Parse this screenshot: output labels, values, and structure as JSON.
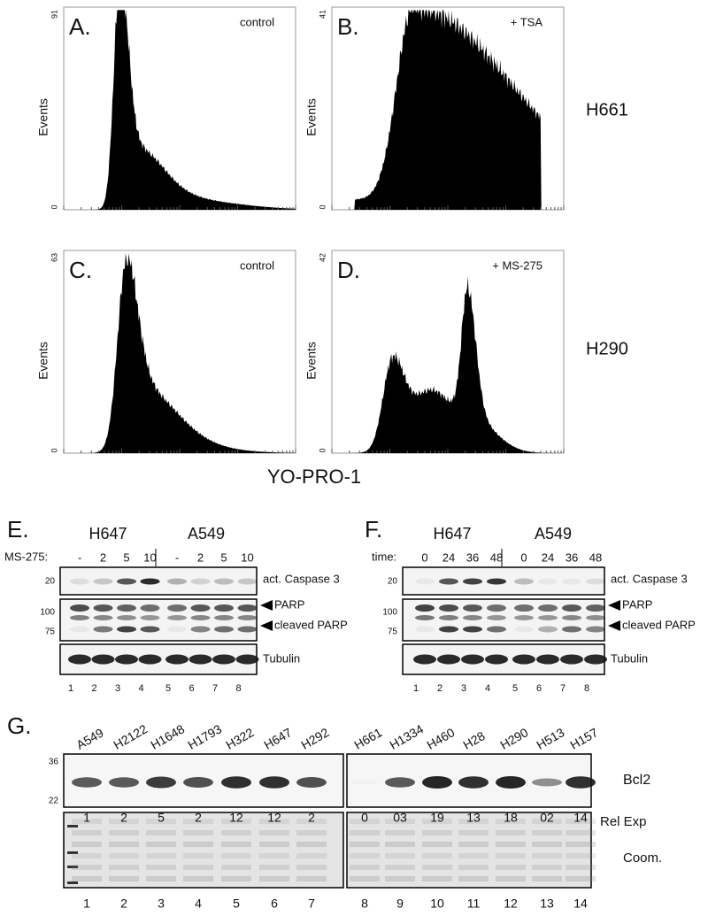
{
  "flow_panels": [
    {
      "letter": "A.",
      "treatment": "control",
      "y_axis_label": "Events",
      "y_max": "91",
      "y_min": "0"
    },
    {
      "letter": "B.",
      "treatment": "+ TSA",
      "y_axis_label": "Events",
      "y_max": "41",
      "y_min": "0"
    },
    {
      "letter": "C.",
      "treatment": "control",
      "y_axis_label": "Events",
      "y_max": "63",
      "y_min": "0"
    },
    {
      "letter": "D.",
      "treatment": "+ MS-275",
      "y_axis_label": "Events",
      "y_max": "42",
      "y_min": "0"
    }
  ],
  "cell_line_labels": [
    "H661",
    "H290"
  ],
  "x_axis_label": "YO-PRO-1",
  "blots": [
    {
      "letter": "E.",
      "groups": [
        "H647",
        "A549"
      ],
      "condition_label": "MS-275:",
      "conditions": [
        "-",
        "2",
        "5",
        "10",
        "-",
        "2",
        "5",
        "10"
      ],
      "markers": [
        "20",
        "100",
        "75"
      ],
      "bands": [
        "act. Caspase 3",
        "PARP",
        "cleaved PARP",
        "Tubulin"
      ],
      "lanes": [
        "1",
        "2",
        "3",
        "4",
        "5",
        "6",
        "7",
        "8"
      ]
    },
    {
      "letter": "F.",
      "groups": [
        "H647",
        "A549"
      ],
      "condition_label": "time:",
      "conditions": [
        "0",
        "24",
        "36",
        "48",
        "0",
        "24",
        "36",
        "48"
      ],
      "markers": [
        "20",
        "100",
        "75"
      ],
      "bands": [
        "act. Caspase 3",
        "PARP",
        "cleaved PARP",
        "Tubulin"
      ],
      "lanes": [
        "1",
        "2",
        "3",
        "4",
        "5",
        "6",
        "7",
        "8"
      ]
    }
  ],
  "panel_G": {
    "letter": "G.",
    "cell_lines": [
      "A549",
      "H2122",
      "H1648",
      "H1793",
      "H322",
      "H647",
      "H292",
      "H661",
      "H1334",
      "H460",
      "H28",
      "H290",
      "H513",
      "H157"
    ],
    "markers": [
      "36",
      "22"
    ],
    "band_label": "Bcl2",
    "rel_exp_label": "Rel Exp",
    "rel_exp": [
      "1",
      "2",
      "5",
      "2",
      "12",
      "12",
      "2",
      "0",
      "03",
      "19",
      "13",
      "18",
      "02",
      "14"
    ],
    "stain_label": "Coom.",
    "lanes": [
      "1",
      "2",
      "3",
      "4",
      "5",
      "6",
      "7",
      "8",
      "9",
      "10",
      "11",
      "12",
      "13",
      "14"
    ]
  }
}
